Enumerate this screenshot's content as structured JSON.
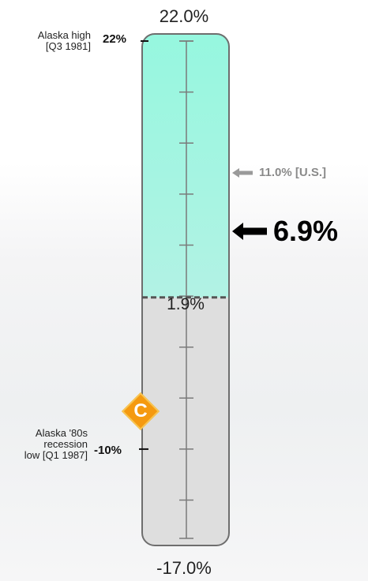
{
  "chart_data": {
    "type": "gauge",
    "scale_max": 22.0,
    "scale_min": -17.0,
    "scale_max_label": "22.0%",
    "scale_min_label": "-17.0%",
    "baseline": 1.9,
    "baseline_label": "1.9%",
    "minor_tick_step": 4.0,
    "current_value": 6.9,
    "current_label": "6.9%",
    "comparison": {
      "value": 11.0,
      "label": "11.0% [U.S.]"
    },
    "high_marker": {
      "value": 22,
      "tick_label": "22%",
      "note": [
        "Alaska high",
        "[Q3 1981]"
      ]
    },
    "low_marker": {
      "value": -10,
      "tick_label": "-10%",
      "note": [
        "Alaska '80s",
        "recession",
        "low [Q1 1987]"
      ]
    },
    "badge": {
      "letter": "C",
      "color": "#f59a10"
    },
    "colors": {
      "above_baseline": "#9ff7e0",
      "below_baseline": "#dedede",
      "outline": "#6e6e6e",
      "dashed_line": "#555555"
    }
  }
}
